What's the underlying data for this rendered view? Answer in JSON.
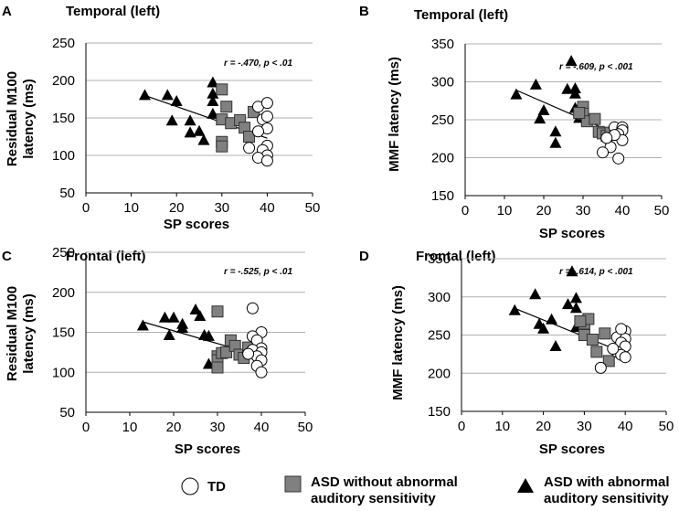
{
  "colors": {
    "asd_normal": "#808080",
    "axis": "#000000",
    "grid": "#b0b0b0",
    "fit_line": "#000000",
    "td_fill": "#ffffff",
    "asd_abnormal": "#000000"
  },
  "legend": [
    {
      "label_lines": [
        "TD"
      ],
      "marker": "circle"
    },
    {
      "label_lines": [
        "ASD without abnormal",
        "auditory sensitivity"
      ],
      "marker": "square"
    },
    {
      "label_lines": [
        "ASD with abnormal",
        "auditory sensitivity"
      ],
      "marker": "triangle"
    }
  ],
  "chart_data": [
    {
      "panel": "A",
      "title": "Temporal (left)",
      "type": "scatter",
      "xlabel": "SP scores",
      "ylabel_lines": [
        "Residual M100",
        "latency (ms)"
      ],
      "xlim": [
        0,
        50
      ],
      "ylim": [
        50,
        250
      ],
      "xticks": [
        0,
        10,
        20,
        30,
        40,
        50
      ],
      "yticks": [
        50,
        100,
        150,
        200,
        250
      ],
      "stat_text": "r = -.470, p < .01",
      "fit_line": {
        "x": [
          13,
          40
        ],
        "y": [
          180,
          123
        ]
      },
      "series": [
        {
          "name": "ASD with abnormal auditory sensitivity",
          "marker": "triangle",
          "points": [
            [
              13,
              180
            ],
            [
              18,
              180
            ],
            [
              20,
              172
            ],
            [
              19,
              146
            ],
            [
              23,
              146
            ],
            [
              23,
              130
            ],
            [
              25,
              132
            ],
            [
              26,
              120
            ],
            [
              28,
              197
            ],
            [
              28,
              182
            ],
            [
              28,
              172
            ],
            [
              28,
              155
            ]
          ]
        },
        {
          "name": "ASD without abnormal auditory sensitivity",
          "marker": "square",
          "points": [
            [
              30,
              188
            ],
            [
              31,
              165
            ],
            [
              30,
              148
            ],
            [
              30,
              118
            ],
            [
              30,
              112
            ],
            [
              32,
              143
            ],
            [
              34,
              147
            ],
            [
              35,
              137
            ],
            [
              36,
              125
            ],
            [
              37,
              158
            ]
          ]
        },
        {
          "name": "TD",
          "marker": "circle",
          "points": [
            [
              38,
              165
            ],
            [
              40,
              170
            ],
            [
              39,
              148
            ],
            [
              40,
              152
            ],
            [
              40,
              136
            ],
            [
              38,
              132
            ],
            [
              40,
              113
            ],
            [
              39,
              107
            ],
            [
              40,
              100
            ],
            [
              38,
              97
            ],
            [
              40,
              93
            ],
            [
              36,
              110
            ]
          ]
        }
      ]
    },
    {
      "panel": "B",
      "title": "Temporal (left)",
      "type": "scatter",
      "xlabel": "SP scores",
      "ylabel_lines": [
        "MMF latency (ms)"
      ],
      "xlim": [
        0,
        50
      ],
      "ylim": [
        150,
        350
      ],
      "xticks": [
        0,
        10,
        20,
        30,
        40,
        50
      ],
      "yticks": [
        150,
        200,
        250,
        300,
        350
      ],
      "stat_text": "r = -.609, p < .001",
      "fit_line": {
        "x": [
          13,
          40
        ],
        "y": [
          289,
          228
        ]
      },
      "series": [
        {
          "name": "ASD with abnormal auditory sensitivity",
          "marker": "triangle",
          "points": [
            [
              13,
              283
            ],
            [
              18,
              296
            ],
            [
              19,
              251
            ],
            [
              20,
              262
            ],
            [
              23,
              234
            ],
            [
              23,
              219
            ],
            [
              26,
              290
            ],
            [
              27,
              327
            ],
            [
              28,
              291
            ],
            [
              28,
              284
            ],
            [
              28,
              265
            ],
            [
              29,
              252
            ]
          ]
        },
        {
          "name": "ASD without abnormal auditory sensitivity",
          "marker": "square",
          "points": [
            [
              30,
              267
            ],
            [
              30,
              258
            ],
            [
              31,
              248
            ],
            [
              33,
              251
            ],
            [
              34,
              234
            ],
            [
              35,
              232
            ],
            [
              36,
              229
            ],
            [
              37,
              233
            ],
            [
              29,
              259
            ]
          ]
        },
        {
          "name": "TD",
          "marker": "circle",
          "points": [
            [
              38,
              240
            ],
            [
              40,
              240
            ],
            [
              40,
              236
            ],
            [
              39,
              231
            ],
            [
              40,
              223
            ],
            [
              37,
              214
            ],
            [
              35,
              207
            ],
            [
              39,
              199
            ],
            [
              38,
              230
            ],
            [
              36,
              226
            ]
          ]
        }
      ]
    },
    {
      "panel": "C",
      "title": "Frontal (left)",
      "type": "scatter",
      "xlabel": "SP scores",
      "ylabel_lines": [
        "Residual M100",
        "latency (ms)"
      ],
      "xlim": [
        0,
        50
      ],
      "ylim": [
        50,
        250
      ],
      "xticks": [
        0,
        10,
        20,
        30,
        40,
        50
      ],
      "yticks": [
        50,
        100,
        150,
        200,
        250
      ],
      "stat_text": "r = -.525, p < .01",
      "fit_line": {
        "x": [
          13,
          40
        ],
        "y": [
          163,
          120
        ]
      },
      "series": [
        {
          "name": "ASD with abnormal auditory sensitivity",
          "marker": "triangle",
          "points": [
            [
              13,
              158
            ],
            [
              18,
              168
            ],
            [
              20,
              168
            ],
            [
              19,
              146
            ],
            [
              22,
              160
            ],
            [
              22,
              155
            ],
            [
              25,
              178
            ],
            [
              26,
              170
            ],
            [
              27,
              146
            ],
            [
              28,
              145
            ],
            [
              28,
              110
            ],
            [
              30,
              110
            ]
          ]
        },
        {
          "name": "ASD without abnormal auditory sensitivity",
          "marker": "square",
          "points": [
            [
              30,
              176
            ],
            [
              30,
              120
            ],
            [
              30,
              115
            ],
            [
              30,
              106
            ],
            [
              31,
              124
            ],
            [
              32,
              125
            ],
            [
              33,
              140
            ],
            [
              34,
              133
            ],
            [
              35,
              122
            ],
            [
              36,
              118
            ],
            [
              37,
              131
            ]
          ]
        },
        {
          "name": "TD",
          "marker": "circle",
          "points": [
            [
              38,
              180
            ],
            [
              40,
              150
            ],
            [
              38,
              145
            ],
            [
              39,
              140
            ],
            [
              40,
              130
            ],
            [
              38,
              128
            ],
            [
              40,
              125
            ],
            [
              39,
              120
            ],
            [
              40,
              115
            ],
            [
              39,
              108
            ],
            [
              40,
              100
            ],
            [
              37,
              123
            ]
          ]
        }
      ]
    },
    {
      "panel": "D",
      "title": "Frontal (left)",
      "type": "scatter",
      "xlabel": "SP scores",
      "ylabel_lines": [
        "MMF latency (ms)"
      ],
      "xlim": [
        0,
        50
      ],
      "ylim": [
        150,
        350
      ],
      "xticks": [
        0,
        10,
        20,
        30,
        40,
        50
      ],
      "yticks": [
        150,
        200,
        250,
        300,
        350
      ],
      "stat_text": "r = -.614, p < .001",
      "fit_line": {
        "x": [
          13,
          40
        ],
        "y": [
          285,
          226
        ]
      },
      "series": [
        {
          "name": "ASD with abnormal auditory sensitivity",
          "marker": "triangle",
          "points": [
            [
              13,
              282
            ],
            [
              18,
              303
            ],
            [
              19,
              264
            ],
            [
              20,
              258
            ],
            [
              22,
              270
            ],
            [
              23,
              235
            ],
            [
              26,
              290
            ],
            [
              27,
              333
            ],
            [
              28,
              298
            ],
            [
              28,
              285
            ],
            [
              28,
              260
            ],
            [
              29,
              262
            ]
          ]
        },
        {
          "name": "ASD without abnormal auditory sensitivity",
          "marker": "square",
          "points": [
            [
              30,
              265
            ],
            [
              30,
              250
            ],
            [
              31,
              271
            ],
            [
              32,
              244
            ],
            [
              33,
              228
            ],
            [
              35,
              252
            ],
            [
              36,
              216
            ],
            [
              29,
              268
            ]
          ]
        },
        {
          "name": "TD",
          "marker": "circle",
          "points": [
            [
              38,
              247
            ],
            [
              40,
              255
            ],
            [
              40,
              245
            ],
            [
              39,
              240
            ],
            [
              40,
              235
            ],
            [
              38,
              228
            ],
            [
              39,
              224
            ],
            [
              40,
              221
            ],
            [
              34,
              207
            ],
            [
              37,
              232
            ],
            [
              39,
              258
            ]
          ]
        }
      ]
    }
  ]
}
